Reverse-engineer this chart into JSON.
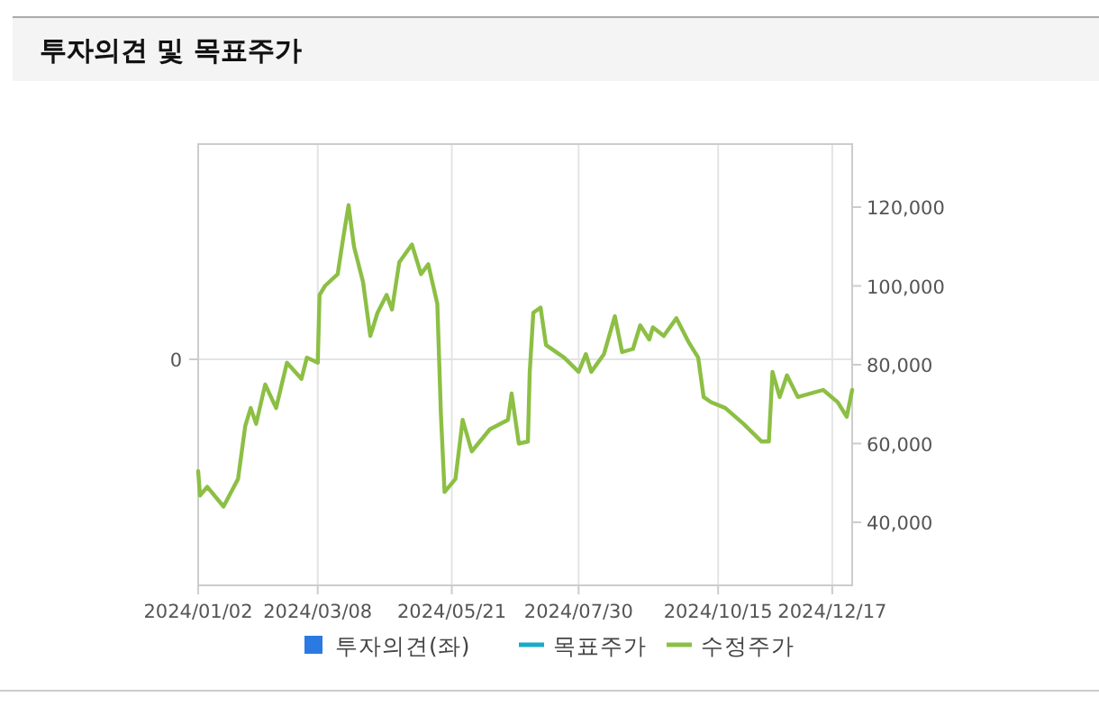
{
  "chart_data": {
    "type": "line",
    "title": "투자의견 및 목표주가",
    "xlim": [
      "2024-01-02",
      "2024-12-28"
    ],
    "xticks": [
      {
        "value": "2024-01-02",
        "label": "2024/01/02"
      },
      {
        "value": "2024-03-08",
        "label": "2024/03/08"
      },
      {
        "value": "2024-05-21",
        "label": "2024/05/21"
      },
      {
        "value": "2024-07-30",
        "label": "2024/07/30"
      },
      {
        "value": "2024-10-15",
        "label": "2024/10/15"
      },
      {
        "value": "2024-12-17",
        "label": "2024/12/17"
      }
    ],
    "annotations": [
      "0"
    ],
    "y2lim": [
      24000,
      136000
    ],
    "y2ticks": [
      {
        "value": 40000,
        "label": "40,000"
      },
      {
        "value": 60000,
        "label": "60,000"
      },
      {
        "value": 80000,
        "label": "80,000"
      },
      {
        "value": 100000,
        "label": "100,000"
      },
      {
        "value": 120000,
        "label": "120,000"
      }
    ],
    "grid": true,
    "legend": "bottom",
    "series": [
      {
        "name": "투자의견(좌)",
        "type": "bar",
        "color": "#2a7ae2"
      },
      {
        "name": "목표주가",
        "color": "#1aa9c9"
      },
      {
        "name": "수정주가",
        "axis": "y2",
        "color": "#8cbf44",
        "x": [
          "2024-01-02",
          "2024-01-03",
          "2024-01-07",
          "2024-01-16",
          "2024-01-24",
          "2024-01-28",
          "2024-01-31",
          "2024-02-03",
          "2024-02-08",
          "2024-02-14",
          "2024-02-20",
          "2024-02-28",
          "2024-03-02",
          "2024-03-08",
          "2024-03-09",
          "2024-03-12",
          "2024-03-19",
          "2024-03-22",
          "2024-03-25",
          "2024-03-28",
          "2024-04-02",
          "2024-04-06",
          "2024-04-10",
          "2024-04-15",
          "2024-04-18",
          "2024-04-22",
          "2024-04-29",
          "2024-05-04",
          "2024-05-08",
          "2024-05-13",
          "2024-05-15",
          "2024-05-17",
          "2024-05-23",
          "2024-05-27",
          "2024-06-01",
          "2024-06-11",
          "2024-06-21",
          "2024-06-23",
          "2024-06-27",
          "2024-07-02",
          "2024-07-03",
          "2024-07-05",
          "2024-07-09",
          "2024-07-12",
          "2024-07-22",
          "2024-07-30",
          "2024-08-03",
          "2024-08-06",
          "2024-08-13",
          "2024-08-19",
          "2024-08-23",
          "2024-08-29",
          "2024-09-02",
          "2024-09-07",
          "2024-09-09",
          "2024-09-15",
          "2024-09-22",
          "2024-09-29",
          "2024-10-04",
          "2024-10-07",
          "2024-10-11",
          "2024-10-19",
          "2024-10-29",
          "2024-11-08",
          "2024-11-12",
          "2024-11-14",
          "2024-11-18",
          "2024-11-22",
          "2024-11-28",
          "2024-12-12",
          "2024-12-20",
          "2024-12-25",
          "2024-12-28"
        ],
        "values": [
          53000,
          46800,
          49000,
          44000,
          51000,
          64500,
          69000,
          65000,
          75000,
          69000,
          80500,
          76400,
          81800,
          80500,
          97700,
          100000,
          103000,
          112000,
          120500,
          110000,
          101000,
          87300,
          93200,
          97700,
          94000,
          106000,
          110500,
          103000,
          105500,
          95500,
          67300,
          47700,
          51000,
          66000,
          58000,
          63600,
          66000,
          72700,
          60000,
          60500,
          78000,
          93200,
          94500,
          85000,
          81800,
          78200,
          82700,
          78200,
          82700,
          92300,
          83200,
          84000,
          90000,
          86400,
          89500,
          87300,
          91800,
          85500,
          81800,
          71800,
          70500,
          69000,
          65000,
          60500,
          60500,
          78200,
          71800,
          77300,
          71800,
          73600,
          70500,
          66800,
          73600
        ]
      }
    ]
  }
}
